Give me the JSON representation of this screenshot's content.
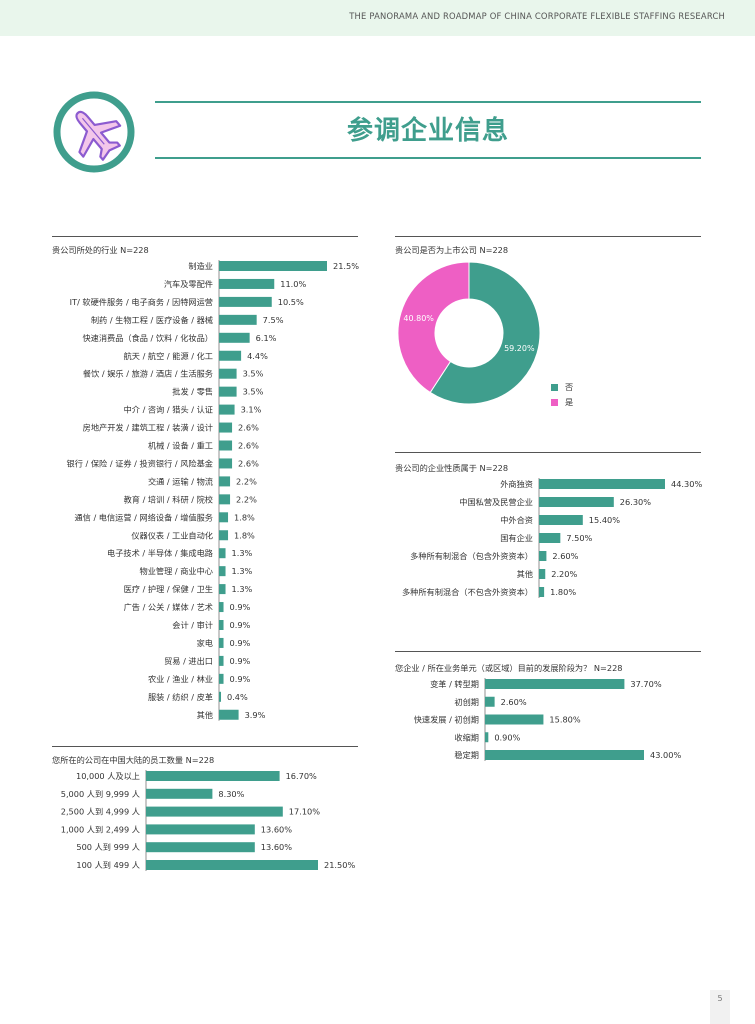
{
  "header": {
    "running_title": "THE PANORAMA AND ROADMAP OF CHINA CORPORATE FLEXIBLE STAFFING RESEARCH"
  },
  "page": {
    "title": "参调企业信息",
    "number": "5",
    "icon": "airplane-icon"
  },
  "colors": {
    "teal": "#3f9e8d",
    "pink": "#ee5fc4",
    "header_bg": "#e9f6ec",
    "icon_purple": "#8c5bd0"
  },
  "chart_data": [
    {
      "id": "industry",
      "type": "bar",
      "orientation": "horizontal",
      "title": "贵公司所处的行业 N=228",
      "categories": [
        "制造业",
        "汽车及零配件",
        "IT/ 软硬件服务 / 电子商务 / 因特网运营",
        "制药 / 生物工程 / 医疗设备 / 器械",
        "快速消费品（食品 / 饮料 / 化妆品）",
        "航天 / 航空 / 能源 / 化工",
        "餐饮 / 娱乐 / 旅游 / 酒店 / 生活服务",
        "批发 / 零售",
        "中介 / 咨询 / 猎头 / 认证",
        "房地产开发 / 建筑工程 / 装潢 / 设计",
        "机械 / 设备 / 重工",
        "银行 / 保险 / 证券 / 投资银行 / 风险基金",
        "交通 / 运输 / 物流",
        "教育 / 培训 / 科研 / 院校",
        "通信 / 电信运营 / 网络设备 / 增值服务",
        "仪器仪表 / 工业自动化",
        "电子技术 / 半导体 / 集成电路",
        "物业管理 / 商业中心",
        "医疗 / 护理 / 保健 / 卫生",
        "广告 / 公关 / 媒体 / 艺术",
        "会计 / 审计",
        "家电",
        "贸易 / 进出口",
        "农业 / 渔业 / 林业",
        "服装 / 纺织 / 皮革",
        "其他"
      ],
      "values": [
        21.5,
        11.0,
        10.5,
        7.5,
        6.1,
        4.4,
        3.5,
        3.5,
        3.1,
        2.6,
        2.6,
        2.6,
        2.2,
        2.2,
        1.8,
        1.8,
        1.3,
        1.3,
        1.3,
        0.9,
        0.9,
        0.9,
        0.9,
        0.9,
        0.4,
        3.9
      ],
      "labels": [
        "21.5%",
        "11.0%",
        "10.5%",
        "7.5%",
        "6.1%",
        "4.4%",
        "3.5%",
        "3.5%",
        "3.1%",
        "2.6%",
        "2.6%",
        "2.6%",
        "2.2%",
        "2.2%",
        "1.8%",
        "1.8%",
        "1.3%",
        "1.3%",
        "1.3%",
        "0.9%",
        "0.9%",
        "0.9%",
        "0.9%",
        "0.9%",
        "0.4%",
        "3.9%"
      ],
      "unit": "%",
      "xlim": [
        0,
        21.5
      ]
    },
    {
      "id": "employees",
      "type": "bar",
      "orientation": "horizontal",
      "title": "您所在的公司在中国大陆的员工数量 N=228",
      "categories": [
        "10,000 人及以上",
        "5,000 人到 9,999 人",
        "2,500 人到 4,999 人",
        "1,000 人到 2,499 人",
        "500 人到 999 人",
        "100 人到 499 人"
      ],
      "values": [
        16.7,
        8.3,
        17.1,
        13.6,
        13.6,
        21.5
      ],
      "labels": [
        "16.70%",
        "8.30%",
        "17.10%",
        "13.60%",
        "13.60%",
        "21.50%"
      ],
      "unit": "%",
      "xlim": [
        0,
        21.5
      ]
    },
    {
      "id": "listed",
      "type": "pie",
      "donut": true,
      "title": "贵公司是否为上市公司 N=228",
      "categories": [
        "否",
        "是"
      ],
      "values": [
        59.2,
        40.8
      ],
      "labels": [
        "59.20%",
        "40.80%"
      ],
      "legend_position": "bottom-right"
    },
    {
      "id": "ownership",
      "type": "bar",
      "orientation": "horizontal",
      "title": "贵公司的企业性质属于 N=228",
      "categories": [
        "外商独资",
        "中国私营及民营企业",
        "中外合资",
        "国有企业",
        "多种所有制混合（包含外资资本）",
        "其他",
        "多种所有制混合（不包含外资资本）"
      ],
      "values": [
        44.3,
        26.3,
        15.4,
        7.5,
        2.6,
        2.2,
        1.8
      ],
      "labels": [
        "44.30%",
        "26.30%",
        "15.40%",
        "7.50%",
        "2.60%",
        "2.20%",
        "1.80%"
      ],
      "unit": "%",
      "xlim": [
        0,
        44.3
      ]
    },
    {
      "id": "stage",
      "type": "bar",
      "orientation": "horizontal",
      "title": "您企业 / 所在业务单元（或区域）目前的发展阶段为？ N=228",
      "categories": [
        "变革 / 转型期",
        "初创期",
        "快速发展 / 初创期",
        "收缩期",
        "稳定期"
      ],
      "values": [
        37.7,
        2.6,
        15.8,
        0.9,
        43.0
      ],
      "labels": [
        "37.70%",
        "2.60%",
        "15.80%",
        "0.90%",
        "43.00%"
      ],
      "unit": "%",
      "xlim": [
        0,
        43.0
      ]
    }
  ]
}
